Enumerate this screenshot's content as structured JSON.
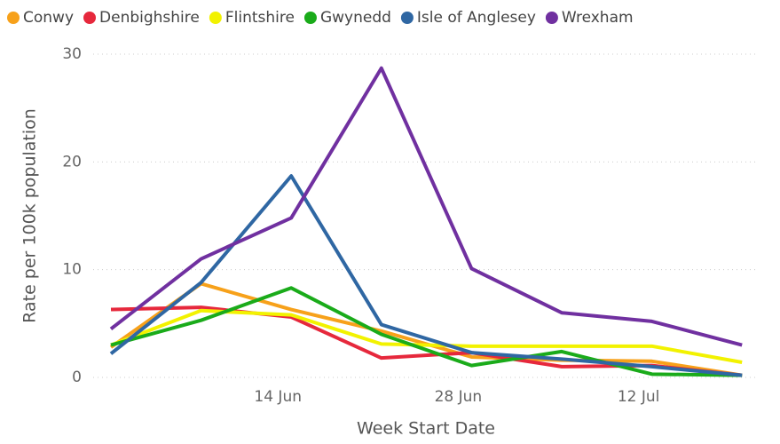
{
  "chart_data": {
    "type": "line",
    "x_label": "Week Start Date",
    "y_label": "Rate per 100k population",
    "categories": [
      null,
      null,
      "14 Jun",
      null,
      "28 Jun",
      null,
      "12 Jul",
      null
    ],
    "series": [
      {
        "name": "Conwy",
        "color": "#f7a11a",
        "values": [
          2.8,
          8.7,
          6.3,
          4.3,
          1.9,
          1.6,
          1.5,
          0.2
        ]
      },
      {
        "name": "Denbighshire",
        "color": "#e6283c",
        "values": [
          6.3,
          6.5,
          5.6,
          1.8,
          2.3,
          1.0,
          1.1,
          0.2
        ]
      },
      {
        "name": "Flintshire",
        "color": "#f2f200",
        "values": [
          3.0,
          6.2,
          5.8,
          3.1,
          2.9,
          2.9,
          2.9,
          1.4
        ]
      },
      {
        "name": "Gwynedd",
        "color": "#1aab1a",
        "values": [
          3.0,
          5.3,
          8.3,
          4.0,
          1.1,
          2.4,
          0.3,
          0.2
        ]
      },
      {
        "name": "Isle of Anglesey",
        "color": "#2f67a3",
        "values": [
          2.2,
          8.8,
          18.7,
          4.9,
          2.3,
          1.7,
          1.0,
          0.2
        ]
      },
      {
        "name": "Wrexham",
        "color": "#7030a0",
        "values": [
          4.5,
          11.0,
          14.8,
          28.7,
          10.1,
          6.0,
          5.2,
          3.0
        ]
      }
    ],
    "ylim": [
      0,
      30
    ],
    "yticks": [
      0,
      10,
      20,
      30
    ],
    "grid": true
  }
}
